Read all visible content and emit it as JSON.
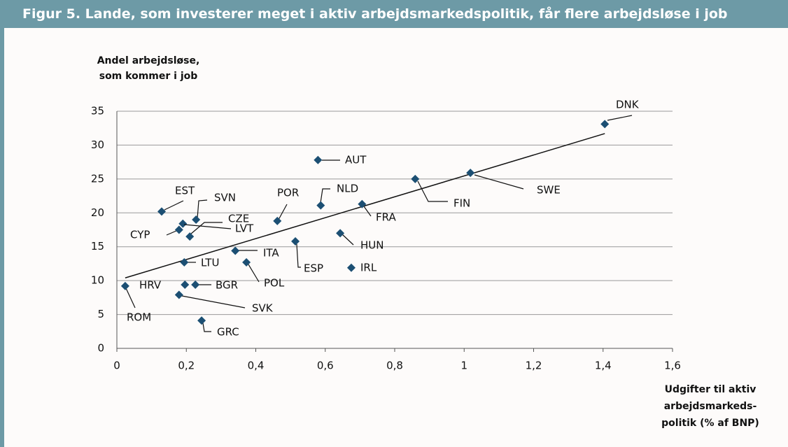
{
  "chart_data": {
    "type": "scatter",
    "title": "Figur 5. Lande, som investerer meget i aktiv arbejdsmarkedspolitik, får flere arbejdsløse i job",
    "y_label": [
      "Andel arbejdsløse,",
      "som kommer i job"
    ],
    "x_label": [
      "Udgifter til aktiv",
      "arbejdsmarkeds-",
      "politik (% af BNP)"
    ],
    "xlim": [
      0,
      1.6
    ],
    "xticks": [
      0,
      {
        "value": 0.2,
        "label": "0,2"
      },
      {
        "value": 0.4,
        "label": "0,4"
      },
      {
        "value": 0.6,
        "label": "0,6"
      },
      {
        "value": 0.8,
        "label": "0,8"
      },
      1,
      {
        "value": 1.2,
        "label": "1,2"
      },
      {
        "value": 1.4,
        "label": "1,4"
      },
      {
        "value": 1.6,
        "label": "1,6"
      }
    ],
    "ylim": [
      0,
      35
    ],
    "yticks": [
      0,
      5,
      10,
      15,
      20,
      25,
      30,
      35
    ],
    "grid": true,
    "series": [
      {
        "color": "#1c4f73",
        "point_labels": [
          "DNK",
          "SWE",
          "FIN",
          "AUT",
          "NLD",
          "FRA",
          "HUN",
          "IRL",
          "ESP",
          "POR",
          "ITA",
          "POL",
          "EST",
          "SVN",
          "CZE",
          "LVT",
          "CYP",
          "LTU",
          "HRV",
          "BGR",
          "ROM",
          "SVK",
          "GRC"
        ],
        "x": [
          1.405,
          1.018,
          0.859,
          0.579,
          0.587,
          0.706,
          0.643,
          0.675,
          0.514,
          0.462,
          0.341,
          0.373,
          0.129,
          0.228,
          0.19,
          0.21,
          0.179,
          0.194,
          0.196,
          0.226,
          0.024,
          0.179,
          0.244
        ],
        "values": [
          33.1,
          25.9,
          25.0,
          27.8,
          21.1,
          21.3,
          17.0,
          11.9,
          15.8,
          18.8,
          14.4,
          12.7,
          20.2,
          19.0,
          18.4,
          16.5,
          17.5,
          12.7,
          9.4,
          9.4,
          9.2,
          7.9,
          4.1
        ]
      }
    ],
    "trendline": {
      "color": "#111111",
      "x": [
        0.024,
        1.405
      ],
      "values": [
        10.4,
        31.7
      ]
    }
  }
}
